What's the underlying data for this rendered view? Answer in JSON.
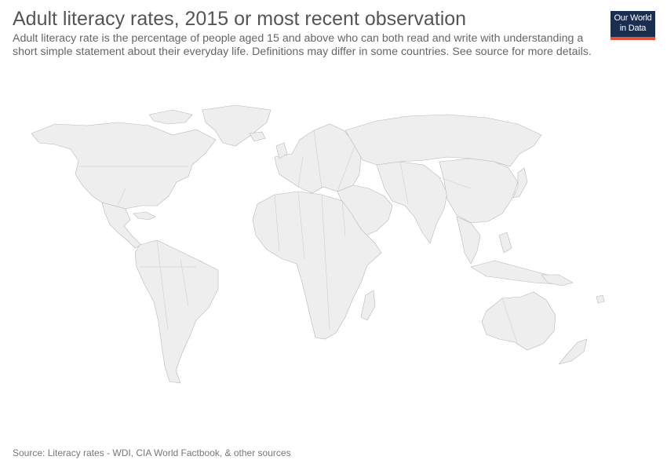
{
  "header": {
    "title": "Adult literacy rates, 2015 or most recent observation",
    "subtitle": "Adult literacy rate is the percentage of people aged 15 and above who can both read and write with understanding a short simple statement about their everyday life. Definitions may differ in some countries. See source for more details."
  },
  "logo": {
    "line1": "Our World",
    "line2": "in Data",
    "bg_color": "#1a2f4f",
    "accent_color": "#e1523b"
  },
  "map": {
    "land_color": "#eeeeee",
    "border_color": "#b8b8b8",
    "projection": "robinson-like world map, no data coloring"
  },
  "footer": {
    "source": "Source: Literacy rates - WDI, CIA World Factbook, & other sources"
  }
}
